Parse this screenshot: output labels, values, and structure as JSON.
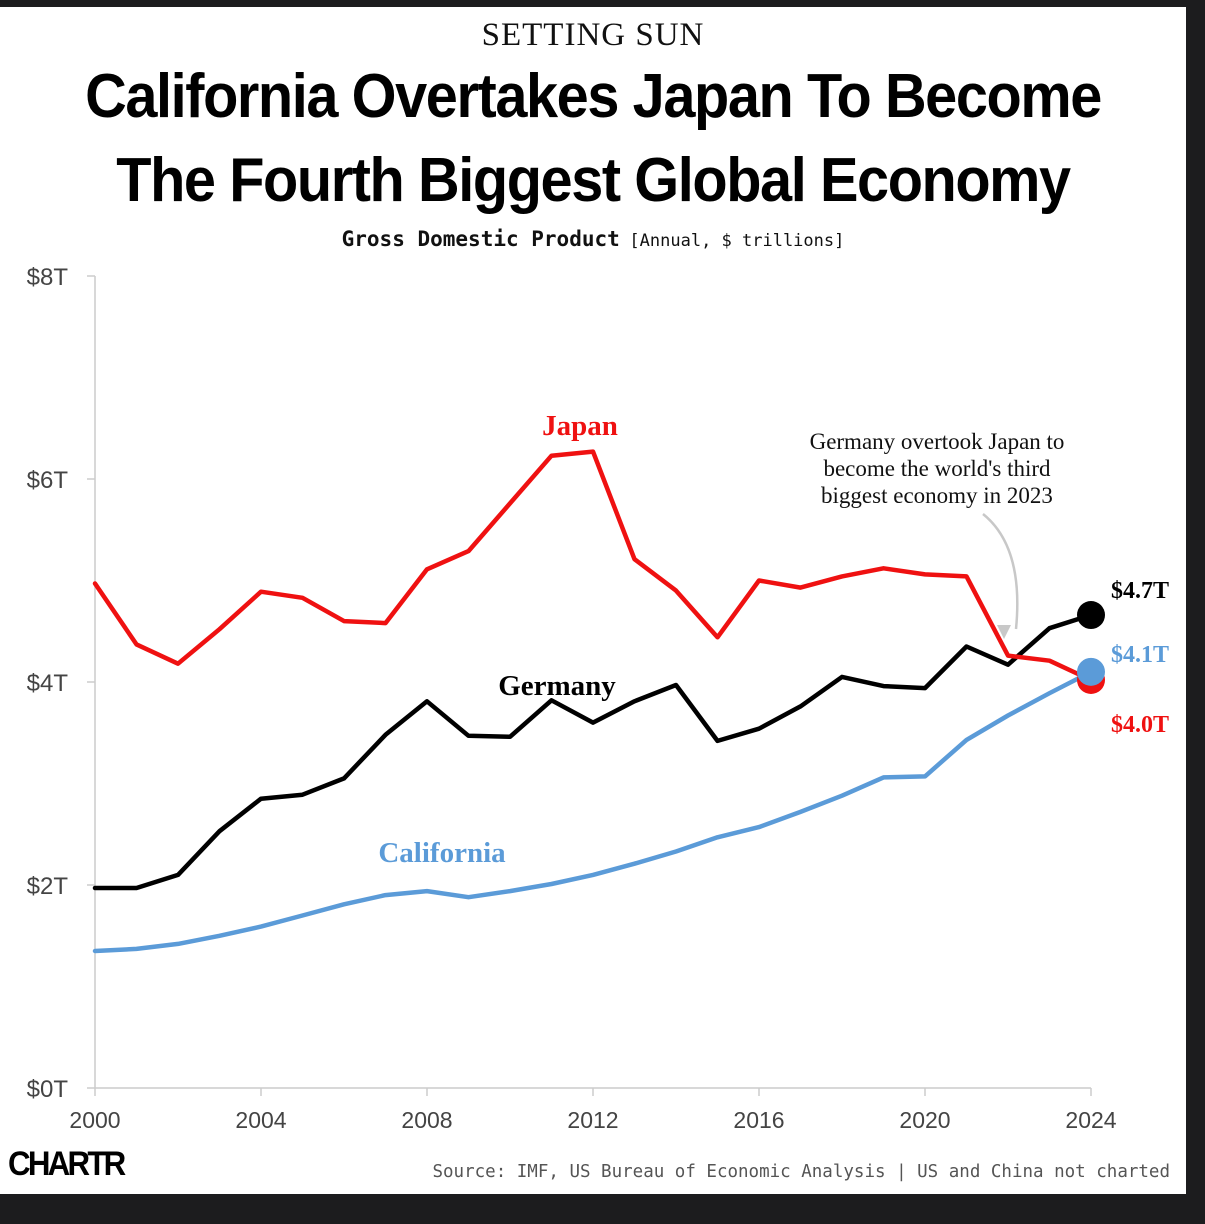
{
  "kicker": "SETTING SUN",
  "headline": "California Overtakes Japan To Become The Fourth Biggest Global Economy",
  "subtitle": {
    "main": "Gross Domestic Product",
    "unit": "[Annual, $ trillions]"
  },
  "footer": {
    "logo": "CHARTR",
    "source": "Source: IMF, US Bureau of Economic Analysis | US and China not charted"
  },
  "colors": {
    "japan": "#ef1111",
    "germany": "#000000",
    "california": "#5b9bd8",
    "axis": "#cccccc",
    "tick_text": "#444444"
  },
  "chart_data": {
    "type": "line",
    "title": "California Overtakes Japan To Become The Fourth Biggest Global Economy",
    "subtitle": "Gross Domestic Product [Annual, $ trillions]",
    "xlabel": "",
    "ylabel": "",
    "x": [
      2000,
      2001,
      2002,
      2003,
      2004,
      2005,
      2006,
      2007,
      2008,
      2009,
      2010,
      2011,
      2012,
      2013,
      2014,
      2015,
      2016,
      2017,
      2018,
      2019,
      2020,
      2021,
      2022,
      2023,
      2024
    ],
    "xlim": [
      2000,
      2024
    ],
    "ylim": [
      0,
      8
    ],
    "x_ticks": [
      2000,
      2004,
      2008,
      2012,
      2016,
      2020,
      2024
    ],
    "y_ticks": [
      0,
      2,
      4,
      6,
      8
    ],
    "y_tick_labels": [
      "$0T",
      "$2T",
      "$4T",
      "$6T",
      "$8T"
    ],
    "grid": false,
    "legend": "direct labels on lines",
    "series": [
      {
        "name": "Japan",
        "key": "japan",
        "color": "#ef1111",
        "values": [
          4.97,
          4.37,
          4.18,
          4.52,
          4.89,
          4.83,
          4.6,
          4.58,
          5.11,
          5.29,
          5.76,
          6.23,
          6.27,
          5.21,
          4.9,
          4.44,
          5.0,
          4.93,
          5.04,
          5.12,
          5.06,
          5.04,
          4.26,
          4.21,
          4.02
        ],
        "end_label": "$4.0T"
      },
      {
        "name": "Germany",
        "key": "germany",
        "color": "#000000",
        "values": [
          1.97,
          1.97,
          2.1,
          2.53,
          2.85,
          2.89,
          3.05,
          3.48,
          3.81,
          3.47,
          3.46,
          3.82,
          3.6,
          3.81,
          3.97,
          3.42,
          3.54,
          3.76,
          4.05,
          3.96,
          3.94,
          4.35,
          4.17,
          4.53,
          4.66
        ],
        "end_label": "$4.7T"
      },
      {
        "name": "California",
        "key": "california",
        "color": "#5b9bd8",
        "values": [
          1.35,
          1.37,
          1.42,
          1.5,
          1.59,
          1.7,
          1.81,
          1.9,
          1.94,
          1.88,
          1.94,
          2.01,
          2.1,
          2.21,
          2.33,
          2.47,
          2.57,
          2.72,
          2.88,
          3.06,
          3.07,
          3.43,
          3.67,
          3.89,
          4.1
        ],
        "end_label": "$4.1T"
      }
    ],
    "annotations": [
      {
        "text": "Germany overtook Japan to become the world's third biggest economy in 2023",
        "lines": [
          "Germany overtook Japan to",
          "become the world's third",
          "biggest economy in 2023"
        ],
        "points_to_year": 2022
      }
    ]
  }
}
